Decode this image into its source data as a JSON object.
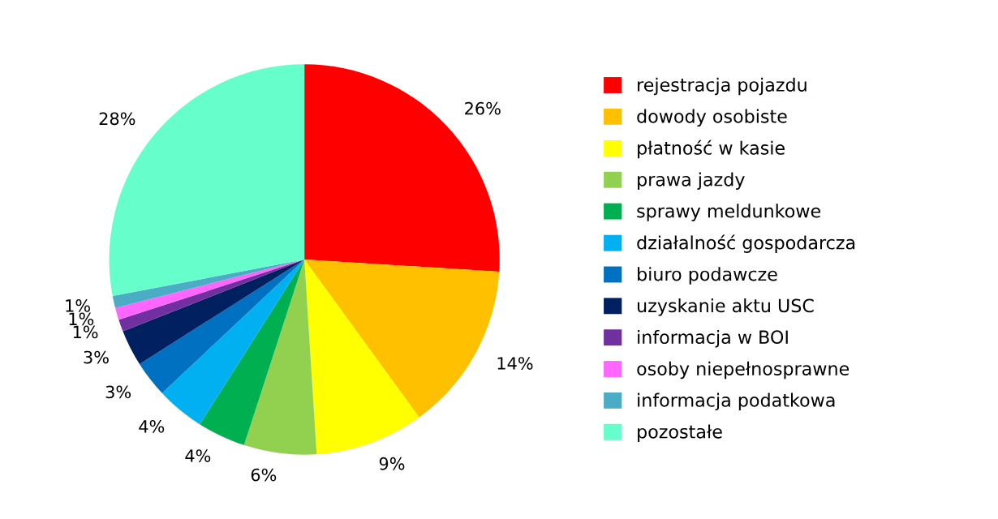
{
  "chart_data": {
    "type": "pie",
    "categories": [
      "rejestracja pojazdu",
      "dowody osobiste",
      "płatność w kasie",
      "prawa jazdy",
      "sprawy meldunkowe",
      "działalność gospodarcza",
      "biuro podawcze",
      "uzyskanie aktu USC",
      "informacja w BOI",
      "osoby niepełnosprawne",
      "informacja podatkowa",
      "pozostałe"
    ],
    "values": [
      26,
      14,
      9,
      6,
      4,
      4,
      3,
      3,
      1,
      1,
      1,
      28
    ],
    "colors": [
      "#ff0000",
      "#ffc000",
      "#ffff00",
      "#92d050",
      "#00b050",
      "#00b0f0",
      "#0070c0",
      "#002060",
      "#7030a0",
      "#ff66ff",
      "#4bacc6",
      "#66ffcc"
    ],
    "value_labels": [
      "26%",
      "14%",
      "9%",
      "6%",
      "4%",
      "4%",
      "3%",
      "3%",
      "1%",
      "1%",
      "1%",
      "28%"
    ],
    "legend": "right"
  }
}
